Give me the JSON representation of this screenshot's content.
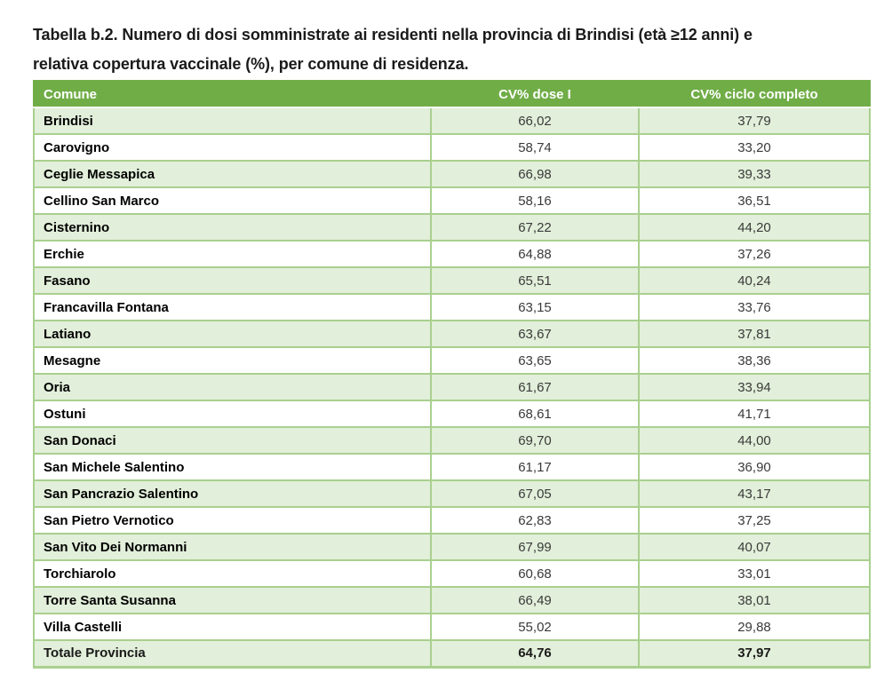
{
  "page": {
    "title_line1": "Tabella b.2. Numero di dosi somministrate ai residenti nella provincia di Brindisi (età ≥12 anni) e",
    "title_line2": "relativa copertura vaccinale (%), per comune di residenza."
  },
  "colors": {
    "header_background": "#70ad47",
    "header_text": "#ffffff",
    "row_alternate_background": "#e2efda",
    "row_background": "#ffffff",
    "cell_border": "#a9d08e",
    "comune_text": "#000000",
    "value_text": "#3a3a3a"
  },
  "table": {
    "headers": [
      "Comune",
      "CV% dose I",
      "CV% ciclo completo"
    ],
    "rows": [
      {
        "comune": "Brindisi",
        "cv_dose1": "66,02",
        "cv_ciclo_completo": "37,79"
      },
      {
        "comune": "Carovigno",
        "cv_dose1": "58,74",
        "cv_ciclo_completo": "33,20"
      },
      {
        "comune": "Ceglie Messapica",
        "cv_dose1": "66,98",
        "cv_ciclo_completo": "39,33"
      },
      {
        "comune": "Cellino San Marco",
        "cv_dose1": "58,16",
        "cv_ciclo_completo": "36,51"
      },
      {
        "comune": "Cisternino",
        "cv_dose1": "67,22",
        "cv_ciclo_completo": "44,20"
      },
      {
        "comune": "Erchie",
        "cv_dose1": "64,88",
        "cv_ciclo_completo": "37,26"
      },
      {
        "comune": "Fasano",
        "cv_dose1": "65,51",
        "cv_ciclo_completo": "40,24"
      },
      {
        "comune": "Francavilla Fontana",
        "cv_dose1": "63,15",
        "cv_ciclo_completo": "33,76"
      },
      {
        "comune": "Latiano",
        "cv_dose1": "63,67",
        "cv_ciclo_completo": "37,81"
      },
      {
        "comune": "Mesagne",
        "cv_dose1": "63,65",
        "cv_ciclo_completo": "38,36"
      },
      {
        "comune": "Oria",
        "cv_dose1": "61,67",
        "cv_ciclo_completo": "33,94"
      },
      {
        "comune": "Ostuni",
        "cv_dose1": "68,61",
        "cv_ciclo_completo": "41,71"
      },
      {
        "comune": "San Donaci",
        "cv_dose1": "69,70",
        "cv_ciclo_completo": "44,00"
      },
      {
        "comune": "San Michele Salentino",
        "cv_dose1": "61,17",
        "cv_ciclo_completo": "36,90"
      },
      {
        "comune": "San Pancrazio Salentino",
        "cv_dose1": "67,05",
        "cv_ciclo_completo": "43,17"
      },
      {
        "comune": "San Pietro Vernotico",
        "cv_dose1": "62,83",
        "cv_ciclo_completo": "37,25"
      },
      {
        "comune": "San Vito Dei Normanni",
        "cv_dose1": "67,99",
        "cv_ciclo_completo": "40,07"
      },
      {
        "comune": "Torchiarolo",
        "cv_dose1": "60,68",
        "cv_ciclo_completo": "33,01"
      },
      {
        "comune": "Torre Santa Susanna",
        "cv_dose1": "66,49",
        "cv_ciclo_completo": "38,01"
      },
      {
        "comune": "Villa Castelli",
        "cv_dose1": "55,02",
        "cv_ciclo_completo": "29,88"
      }
    ],
    "total_row": {
      "comune": "Totale Provincia",
      "cv_dose1": "64,76",
      "cv_ciclo_completo": "37,97"
    }
  }
}
